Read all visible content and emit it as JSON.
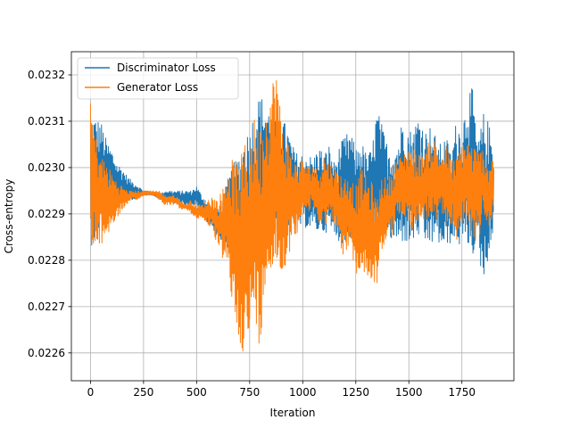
{
  "chart_data": {
    "type": "line",
    "title": "",
    "xlabel": "Iteration",
    "ylabel": "Cross-entropy",
    "xlim": [
      -90,
      1995
    ],
    "ylim": [
      0.02254,
      0.02325
    ],
    "xticks": [
      0,
      250,
      500,
      750,
      1000,
      1250,
      1500,
      1750
    ],
    "xtick_labels": [
      "0",
      "250",
      "500",
      "750",
      "1000",
      "1250",
      "1500",
      "1750"
    ],
    "yticks": [
      0.0226,
      0.0227,
      0.0228,
      0.0229,
      0.023,
      0.0231,
      0.0232
    ],
    "ytick_labels": [
      "0.0226",
      "0.0227",
      "0.0228",
      "0.0229",
      "0.0230",
      "0.0231",
      "0.0232"
    ],
    "grid": true,
    "legend_position": "upper-left",
    "series": [
      {
        "name": "Discriminator Loss",
        "color": "#1f77b4",
        "x": [
          0,
          25,
          50,
          75,
          100,
          125,
          150,
          175,
          200,
          225,
          250,
          275,
          300,
          325,
          350,
          375,
          400,
          425,
          450,
          475,
          500,
          525,
          550,
          575,
          600,
          625,
          650,
          675,
          700,
          725,
          750,
          775,
          800,
          825,
          850,
          875,
          900,
          925,
          950,
          975,
          1000,
          1025,
          1050,
          1075,
          1100,
          1125,
          1150,
          1175,
          1200,
          1225,
          1250,
          1275,
          1300,
          1325,
          1350,
          1375,
          1400,
          1425,
          1450,
          1475,
          1500,
          1525,
          1550,
          1575,
          1600,
          1625,
          1650,
          1675,
          1700,
          1725,
          1750,
          1775,
          1800,
          1825,
          1850,
          1875,
          1900
        ],
        "upper": [
          0.02312,
          0.02311,
          0.0231,
          0.02306,
          0.02304,
          0.02301,
          0.023,
          0.02298,
          0.02297,
          0.02296,
          0.02295,
          0.02295,
          0.02294,
          0.02294,
          0.02295,
          0.02295,
          0.02295,
          0.02295,
          0.02295,
          0.02295,
          0.02296,
          0.02294,
          0.02293,
          0.02291,
          0.02291,
          0.02293,
          0.02298,
          0.02301,
          0.02303,
          0.02306,
          0.02309,
          0.02313,
          0.02316,
          0.02314,
          0.02312,
          0.02311,
          0.02311,
          0.02309,
          0.02305,
          0.02303,
          0.02303,
          0.02303,
          0.02302,
          0.02305,
          0.02303,
          0.02305,
          0.02301,
          0.02305,
          0.02307,
          0.02308,
          0.02304,
          0.02306,
          0.02303,
          0.02304,
          0.02313,
          0.02309,
          0.02305,
          0.02304,
          0.02306,
          0.02312,
          0.02308,
          0.02309,
          0.02312,
          0.02308,
          0.02309,
          0.02307,
          0.02305,
          0.02307,
          0.02303,
          0.02311,
          0.02308,
          0.02317,
          0.02317,
          0.02305,
          0.02312,
          0.0231,
          0.02305
        ],
        "lower": [
          0.02283,
          0.02284,
          0.02288,
          0.02289,
          0.02291,
          0.02292,
          0.02292,
          0.02293,
          0.02293,
          0.02294,
          0.02294,
          0.02294,
          0.02294,
          0.02293,
          0.02293,
          0.02293,
          0.02292,
          0.02292,
          0.02292,
          0.02292,
          0.02292,
          0.0229,
          0.02288,
          0.02287,
          0.02285,
          0.02283,
          0.02282,
          0.0228,
          0.02279,
          0.02278,
          0.02276,
          0.02278,
          0.02282,
          0.02284,
          0.02286,
          0.02286,
          0.02286,
          0.02286,
          0.02285,
          0.02287,
          0.02287,
          0.02287,
          0.02286,
          0.02286,
          0.02286,
          0.02286,
          0.02285,
          0.02284,
          0.02283,
          0.02285,
          0.02283,
          0.02284,
          0.02283,
          0.02283,
          0.02284,
          0.02285,
          0.02284,
          0.02284,
          0.02283,
          0.02284,
          0.02283,
          0.02284,
          0.02285,
          0.02283,
          0.02283,
          0.02284,
          0.02283,
          0.02282,
          0.02284,
          0.02284,
          0.02282,
          0.02283,
          0.02281,
          0.02283,
          0.02274,
          0.02281,
          0.02283
        ]
      },
      {
        "name": "Generator Loss",
        "color": "#ff7f0e",
        "x": [
          0,
          25,
          50,
          75,
          100,
          125,
          150,
          175,
          200,
          225,
          250,
          275,
          300,
          325,
          350,
          375,
          400,
          425,
          450,
          475,
          500,
          525,
          550,
          575,
          600,
          625,
          650,
          675,
          700,
          725,
          750,
          775,
          800,
          825,
          850,
          875,
          900,
          925,
          950,
          975,
          1000,
          1025,
          1050,
          1075,
          1100,
          1125,
          1150,
          1175,
          1200,
          1225,
          1250,
          1275,
          1300,
          1325,
          1350,
          1375,
          1400,
          1425,
          1450,
          1475,
          1500,
          1525,
          1550,
          1575,
          1600,
          1625,
          1650,
          1675,
          1700,
          1725,
          1750,
          1775,
          1800,
          1825,
          1850,
          1875,
          1900
        ],
        "upper": [
          0.02314,
          0.02307,
          0.02303,
          0.02301,
          0.02299,
          0.02297,
          0.02296,
          0.02295,
          0.02295,
          0.02295,
          0.02295,
          0.02295,
          0.02295,
          0.02295,
          0.02294,
          0.02294,
          0.02294,
          0.02293,
          0.02292,
          0.02293,
          0.02292,
          0.02292,
          0.02293,
          0.02294,
          0.02293,
          0.02296,
          0.02301,
          0.02302,
          0.02301,
          0.02305,
          0.02308,
          0.02311,
          0.02309,
          0.02312,
          0.02317,
          0.02323,
          0.0231,
          0.02307,
          0.02302,
          0.02301,
          0.02302,
          0.023,
          0.02301,
          0.02299,
          0.02303,
          0.02301,
          0.023,
          0.02299,
          0.02298,
          0.02298,
          0.02296,
          0.023,
          0.02298,
          0.02297,
          0.02293,
          0.02299,
          0.02297,
          0.02301,
          0.02302,
          0.02303,
          0.02305,
          0.02304,
          0.02303,
          0.02304,
          0.02306,
          0.02306,
          0.02303,
          0.02305,
          0.02302,
          0.02302,
          0.02306,
          0.02306,
          0.02305,
          0.02304,
          0.02304,
          0.02301,
          0.02303
        ],
        "lower": [
          0.02281,
          0.02282,
          0.02283,
          0.02285,
          0.02287,
          0.02289,
          0.02291,
          0.02292,
          0.02293,
          0.02293,
          0.02294,
          0.02294,
          0.02294,
          0.02293,
          0.02292,
          0.02292,
          0.02292,
          0.02291,
          0.02291,
          0.0229,
          0.02289,
          0.02289,
          0.02288,
          0.02286,
          0.02283,
          0.0228,
          0.02276,
          0.02268,
          0.02263,
          0.02259,
          0.02262,
          0.02269,
          0.02259,
          0.02277,
          0.02277,
          0.02278,
          0.02276,
          0.0228,
          0.02283,
          0.02286,
          0.02291,
          0.0229,
          0.02291,
          0.02288,
          0.02287,
          0.02289,
          0.02288,
          0.02282,
          0.0228,
          0.02285,
          0.02275,
          0.02278,
          0.02276,
          0.02275,
          0.02275,
          0.02282,
          0.02285,
          0.02285,
          0.02289,
          0.0229,
          0.02288,
          0.02286,
          0.02288,
          0.02289,
          0.02288,
          0.02288,
          0.02289,
          0.02287,
          0.02288,
          0.02284,
          0.02287,
          0.02289,
          0.02285,
          0.02283,
          0.0229,
          0.02286,
          0.0229
        ]
      }
    ]
  }
}
